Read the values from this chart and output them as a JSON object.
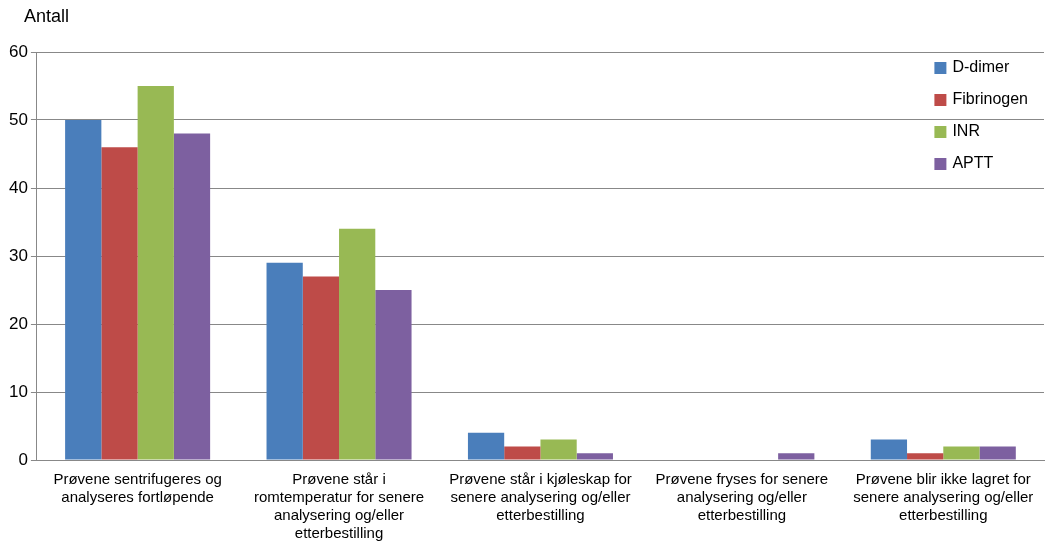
{
  "chart_data": {
    "type": "bar",
    "ylabel": "Antall",
    "categories": [
      "Prøvene sentrifugeres og analyseres fortløpende",
      "Prøvene står i romtemperatur for senere analysering og/eller etterbestilling",
      "Prøvene står i kjøleskap for senere analysering og/eller etterbestilling",
      "Prøvene fryses for senere analysering og/eller etterbestilling",
      "Prøvene blir ikke lagret for senere analysering og/eller etterbestilling"
    ],
    "series": [
      {
        "name": "D-dimer",
        "color": "#4a7ebb",
        "values": [
          50,
          29,
          4,
          0,
          3
        ]
      },
      {
        "name": "Fibrinogen",
        "color": "#be4b48",
        "values": [
          46,
          27,
          2,
          0,
          1
        ]
      },
      {
        "name": "INR",
        "color": "#98b954",
        "values": [
          55,
          34,
          3,
          0,
          2
        ]
      },
      {
        "name": "APTT",
        "color": "#7d60a0",
        "values": [
          48,
          25,
          1,
          1,
          2
        ]
      }
    ],
    "ylim": [
      0,
      60
    ],
    "yticks": [
      0,
      10,
      20,
      30,
      40,
      50,
      60
    ],
    "grid": "y",
    "legend": "top right"
  }
}
